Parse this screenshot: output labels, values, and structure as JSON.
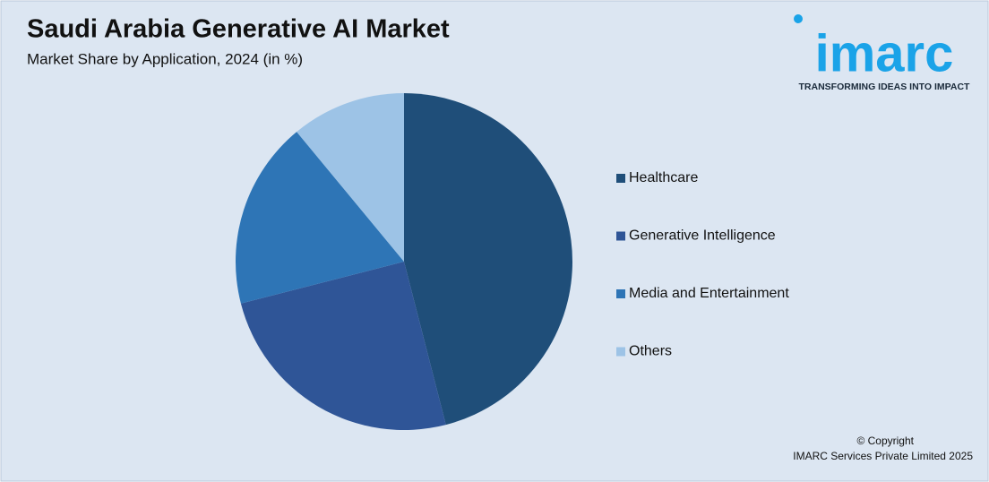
{
  "chart_data": {
    "type": "pie",
    "title": "Saudi Arabia Generative AI Market",
    "subtitle": "Market Share by Application, 2024 (in %)",
    "categories": [
      "Healthcare",
      "Generative Intelligence",
      "Media and Entertainment",
      "Others"
    ],
    "values": [
      46,
      25,
      18,
      11
    ],
    "colors": [
      "#1f4e79",
      "#2f5597",
      "#2e75b6",
      "#9dc3e6"
    ],
    "legend": "right"
  },
  "logo": {
    "name": "imarc",
    "tagline": "TRANSFORMING IDEAS INTO IMPACT"
  },
  "footer": {
    "copyright": "© Copyright",
    "owner": "IMARC Services Private Limited 2025"
  }
}
